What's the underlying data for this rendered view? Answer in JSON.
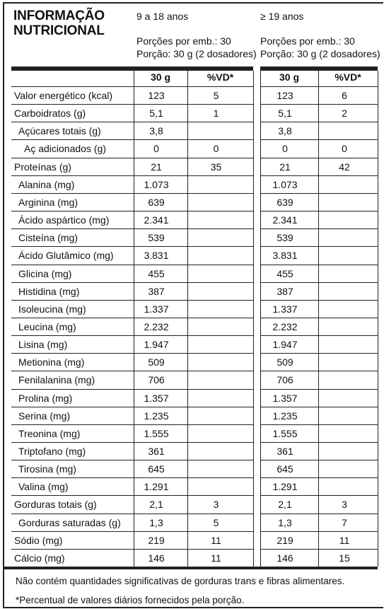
{
  "title_line1": "INFORMAÇÃO",
  "title_line2": "NUTRICIONAL",
  "groups": [
    {
      "age": "9 a 18 anos",
      "portions": "Porções por emb.: 30",
      "portion": "Porção: 30 g (2 dosadores)"
    },
    {
      "age": "≥ 19 anos",
      "portions": "Porções por emb.: 30",
      "portion": "Porção: 30 g (2 dosadores)"
    }
  ],
  "columns": {
    "amount": "30 g",
    "dv": "%VD*"
  },
  "rows": [
    {
      "label": "Valor energético (kcal)",
      "indent": 0,
      "a1": "123",
      "v1": "5",
      "a2": "123",
      "v2": "6"
    },
    {
      "label": "Carboidratos (g)",
      "indent": 0,
      "a1": "5,1",
      "v1": "1",
      "a2": "5,1",
      "v2": "2"
    },
    {
      "label": "Açúcares totais (g)",
      "indent": 1,
      "a1": "3,8",
      "v1": "",
      "a2": "3,8",
      "v2": ""
    },
    {
      "label": "Aç adicionados (g)",
      "indent": 2,
      "a1": "0",
      "v1": "0",
      "a2": "0",
      "v2": "0"
    },
    {
      "label": "Proteínas (g)",
      "indent": 0,
      "a1": "21",
      "v1": "35",
      "a2": "21",
      "v2": "42"
    },
    {
      "label": "Alanina (mg)",
      "indent": 1,
      "a1": "1.073",
      "v1": "",
      "a2": "1.073",
      "v2": ""
    },
    {
      "label": "Arginina (mg)",
      "indent": 1,
      "a1": "639",
      "v1": "",
      "a2": "639",
      "v2": ""
    },
    {
      "label": "Ácido aspártico (mg)",
      "indent": 1,
      "a1": "2.341",
      "v1": "",
      "a2": "2.341",
      "v2": ""
    },
    {
      "label": "Cisteína (mg)",
      "indent": 1,
      "a1": "539",
      "v1": "",
      "a2": "539",
      "v2": ""
    },
    {
      "label": "Ácido Glutâmico (mg)",
      "indent": 1,
      "a1": "3.831",
      "v1": "",
      "a2": "3.831",
      "v2": ""
    },
    {
      "label": "Glicina (mg)",
      "indent": 1,
      "a1": "455",
      "v1": "",
      "a2": "455",
      "v2": ""
    },
    {
      "label": "Histidina (mg)",
      "indent": 1,
      "a1": "387",
      "v1": "",
      "a2": "387",
      "v2": ""
    },
    {
      "label": "Isoleucina (mg)",
      "indent": 1,
      "a1": "1.337",
      "v1": "",
      "a2": "1.337",
      "v2": ""
    },
    {
      "label": "Leucina (mg)",
      "indent": 1,
      "a1": "2.232",
      "v1": "",
      "a2": "2.232",
      "v2": ""
    },
    {
      "label": "Lisina (mg)",
      "indent": 1,
      "a1": "1.947",
      "v1": "",
      "a2": "1.947",
      "v2": ""
    },
    {
      "label": "Metionina (mg)",
      "indent": 1,
      "a1": "509",
      "v1": "",
      "a2": "509",
      "v2": ""
    },
    {
      "label": "Fenilalanina (mg)",
      "indent": 1,
      "a1": "706",
      "v1": "",
      "a2": "706",
      "v2": ""
    },
    {
      "label": "Prolina (mg)",
      "indent": 1,
      "a1": "1.357",
      "v1": "",
      "a2": "1.357",
      "v2": ""
    },
    {
      "label": "Serina (mg)",
      "indent": 1,
      "a1": "1.235",
      "v1": "",
      "a2": "1.235",
      "v2": ""
    },
    {
      "label": "Treonina (mg)",
      "indent": 1,
      "a1": "1.555",
      "v1": "",
      "a2": "1.555",
      "v2": ""
    },
    {
      "label": "Triptofano (mg)",
      "indent": 1,
      "a1": "361",
      "v1": "",
      "a2": "361",
      "v2": ""
    },
    {
      "label": "Tirosina (mg)",
      "indent": 1,
      "a1": "645",
      "v1": "",
      "a2": "645",
      "v2": ""
    },
    {
      "label": "Valina (mg)",
      "indent": 1,
      "a1": "1.291",
      "v1": "",
      "a2": "1.291",
      "v2": ""
    },
    {
      "label": "Gorduras totais (g)",
      "indent": 0,
      "a1": "2,1",
      "v1": "3",
      "a2": "2,1",
      "v2": "3"
    },
    {
      "label": "Gorduras saturadas (g)",
      "indent": 1,
      "a1": "1,3",
      "v1": "5",
      "a2": "1,3",
      "v2": "7"
    },
    {
      "label": "Sódio (mg)",
      "indent": 0,
      "a1": "219",
      "v1": "11",
      "a2": "219",
      "v2": "11"
    },
    {
      "label": "Cálcio (mg)",
      "indent": 0,
      "a1": "146",
      "v1": "11",
      "a2": "146",
      "v2": "15"
    }
  ],
  "footnote1": "Não contém quantidades significativas de gorduras trans e fibras alimentares.",
  "footnote2": "*Percentual de valores diários fornecidos pela porção."
}
